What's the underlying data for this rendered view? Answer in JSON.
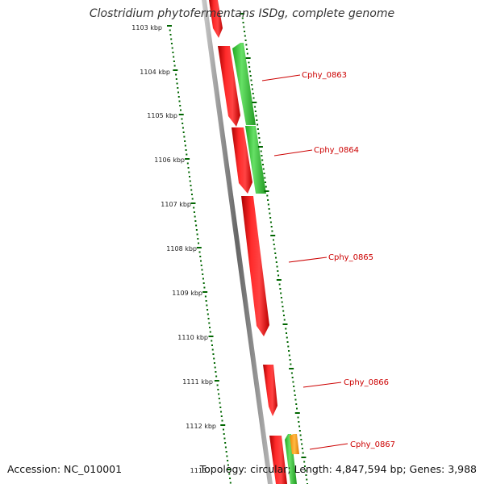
{
  "title": "Clostridium phytofermentans ISDg, complete genome",
  "accession": "Accession: NC_010001",
  "topology": "Topology: circular; Length: 4,847,594 bp; Genes: 3,988",
  "kbp_labels": [
    "1103 kbp",
    "1104 kbp",
    "1105 kbp",
    "1106 kbp",
    "1107 kbp",
    "1108 kbp",
    "1109 kbp",
    "1110 kbp",
    "1111 kbp",
    "1112 kbp",
    "1113"
  ],
  "gene_labels": [
    "Cphy_0863",
    "Cphy_0864",
    "Cphy_0865",
    "Cphy_0866",
    "Cphy_0867"
  ],
  "colors": {
    "forward": "#ee1111",
    "reverse": "#33bb33",
    "other": "#ff9900",
    "tick": "#006600",
    "backbone": "#888888",
    "label": "#cc0000"
  }
}
